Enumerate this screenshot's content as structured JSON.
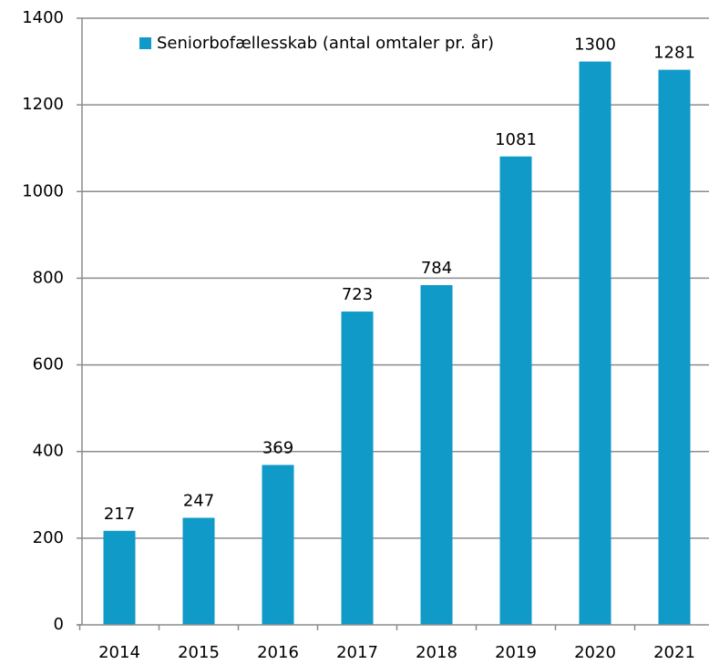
{
  "chart_data": {
    "type": "bar",
    "categories": [
      "2014",
      "2015",
      "2016",
      "2017",
      "2018",
      "2019",
      "2020",
      "2021"
    ],
    "series": [
      {
        "name": "Seniorbofællesskab (antal omtaler pr. år)",
        "color": "#0f9ac8",
        "values": [
          217,
          247,
          369,
          723,
          784,
          1081,
          1300,
          1281
        ]
      }
    ],
    "ylim": [
      0,
      1400
    ],
    "yticks": [
      0,
      200,
      400,
      600,
      800,
      1000,
      1200,
      1400
    ],
    "grid": true,
    "legend": "top"
  }
}
